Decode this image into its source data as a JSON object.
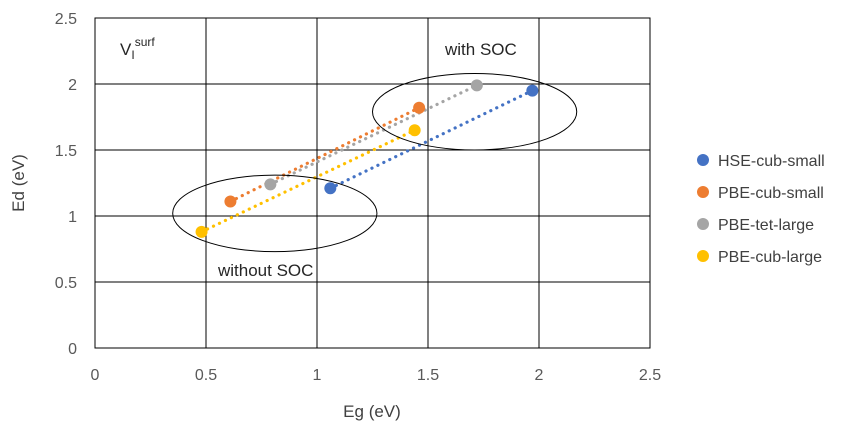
{
  "chart_data": {
    "type": "scatter",
    "xlabel": "Eg (eV)",
    "ylabel": "Ed (eV)",
    "xlim": [
      0,
      2.5
    ],
    "ylim": [
      0,
      2.5
    ],
    "x_ticks": [
      "0",
      "0.5",
      "1",
      "1.5",
      "2",
      "2.5"
    ],
    "y_ticks": [
      "0",
      "0.5",
      "1",
      "1.5",
      "2",
      "2.5"
    ],
    "grid": true,
    "legend_position": "right",
    "trendline_style": "dotted",
    "series": [
      {
        "name": "HSE-cub-small",
        "color": "#4472C4",
        "points": [
          [
            1.06,
            1.21
          ],
          [
            1.97,
            1.95
          ]
        ]
      },
      {
        "name": "PBE-cub-small",
        "color": "#ED7D31",
        "points": [
          [
            0.61,
            1.11
          ],
          [
            1.46,
            1.82
          ]
        ]
      },
      {
        "name": "PBE-tet-large",
        "color": "#A5A5A5",
        "points": [
          [
            0.79,
            1.24
          ],
          [
            1.72,
            1.99
          ]
        ]
      },
      {
        "name": "PBE-cub-large",
        "color": "#FFC000",
        "points": [
          [
            0.48,
            0.88
          ],
          [
            1.44,
            1.65
          ]
        ]
      }
    ],
    "annotations": {
      "corner_label_main": "V",
      "corner_label_sub": "I",
      "corner_label_sup": "surf",
      "with_soc": "with SOC",
      "without_soc": "without SOC"
    },
    "ellipses": [
      {
        "label": "with SOC",
        "center": [
          1.71,
          1.79
        ],
        "radii": [
          0.46,
          0.29
        ]
      },
      {
        "label": "without SOC",
        "center": [
          0.81,
          1.02
        ],
        "radii": [
          0.46,
          0.29
        ]
      }
    ]
  }
}
